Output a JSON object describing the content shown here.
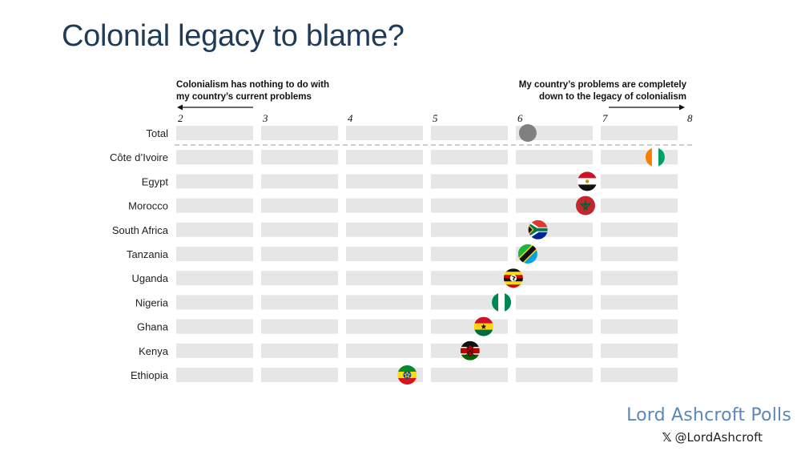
{
  "title": "Colonial legacy to blame?",
  "legend": {
    "left_line1": "Colonialism has nothing to do with",
    "left_line2": "my country’s current problems",
    "right_line1": "My country’s problems are completely",
    "right_line2": "down to the legacy of colonialism"
  },
  "brand": "Lord Ashcroft Polls",
  "handle_icon": "x-logo-icon",
  "handle": "@LordAshcroft",
  "chart_data": {
    "type": "scatter",
    "xlim": [
      2,
      8
    ],
    "x_ticks": [
      "2",
      "3",
      "4",
      "5",
      "6",
      "7",
      "8"
    ],
    "categories": [
      "Total",
      "Côte d’Ivoire",
      "Egypt",
      "Morocco",
      "South Africa",
      "Tanzania",
      "Uganda",
      "Nigeria",
      "Ghana",
      "Kenya",
      "Ethiopia"
    ],
    "values": [
      6.15,
      7.65,
      6.85,
      6.83,
      6.27,
      6.15,
      5.98,
      5.84,
      5.63,
      5.47,
      4.73
    ],
    "marker_icons": [
      "grey-dot-icon",
      "cote-divoire-flag-icon",
      "egypt-flag-icon",
      "morocco-flag-icon",
      "south-africa-flag-icon",
      "tanzania-flag-icon",
      "uganda-flag-icon",
      "nigeria-flag-icon",
      "ghana-flag-icon",
      "kenya-flag-icon",
      "ethiopia-flag-icon"
    ],
    "grid": true,
    "colors": {
      "track": "#e6e6e6",
      "total_dot": "#808080",
      "divider": "#9a9a9a"
    }
  }
}
